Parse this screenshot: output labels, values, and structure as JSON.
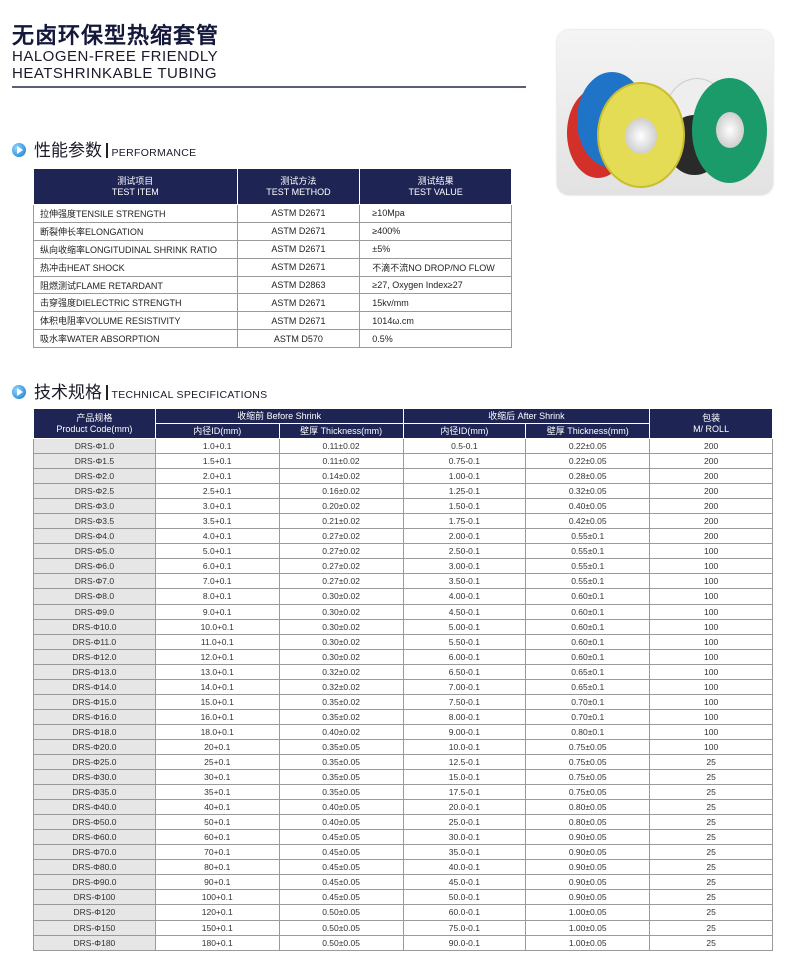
{
  "header": {
    "title_cn": "无卤环保型热缩套管",
    "title_en_line1": "HALOGEN-FREE FRIENDLY",
    "title_en_line2": "HEATSHRINKABLE TUBING"
  },
  "performance": {
    "title_cn": "性能参数",
    "title_en": "PERFORMANCE",
    "headers": [
      [
        "测试项目",
        "TEST ITEM"
      ],
      [
        "测试方法",
        "TEST METHOD"
      ],
      [
        "测试结果",
        "TEST VALUE"
      ]
    ],
    "rows": [
      [
        "拉伸强度TENSILE STRENGTH",
        "ASTM D2671",
        "≥10Mpa"
      ],
      [
        "断裂伸长率ELONGATION",
        "ASTM D2671",
        "≥400%"
      ],
      [
        "纵向收缩率LONGITUDINAL SHRINK RATIO",
        "ASTM D2671",
        "±5%"
      ],
      [
        "热冲击HEAT SHOCK",
        "ASTM D2671",
        "不滴不流NO DROP/NO FLOW"
      ],
      [
        "阻燃测试FLAME RETARDANT",
        "ASTM D2863",
        "≥27, Oxygen Index≥27"
      ],
      [
        "击穿强度DIELECTRIC STRENGTH",
        "ASTM D2671",
        "15kv/mm"
      ],
      [
        "体积电阻率VOLUME RESISTIVITY",
        "ASTM D2671",
        "1014ω.cm"
      ],
      [
        "吸水率WATER ABSORPTION",
        "ASTM D570",
        "0.5%"
      ]
    ]
  },
  "specs": {
    "title_cn": "技术规格",
    "title_en": "TECHNICAL SPECIFICATIONS",
    "header": {
      "code_cn": "产品规格",
      "code_en": "Product Code(mm)",
      "before": "收缩前 Before Shrink",
      "after": "收缩后 After Shrink",
      "pack_cn": "包装",
      "pack_en": "M/ ROLL",
      "id": "内径ID(mm)",
      "thickness": "壁厚 Thickness(mm)"
    },
    "rows": [
      [
        "DRS-Φ1.0",
        "1.0+0.1",
        "0.11±0.02",
        "0.5-0.1",
        "0.22±0.05",
        "200"
      ],
      [
        "DRS-Φ1.5",
        "1.5+0.1",
        "0.11±0.02",
        "0.75-0.1",
        "0.22±0.05",
        "200"
      ],
      [
        "DRS-Φ2.0",
        "2.0+0.1",
        "0.14±0.02",
        "1.00-0.1",
        "0.28±0.05",
        "200"
      ],
      [
        "DRS-Φ2.5",
        "2.5+0.1",
        "0.16±0.02",
        "1.25-0.1",
        "0.32±0.05",
        "200"
      ],
      [
        "DRS-Φ3.0",
        "3.0+0.1",
        "0.20±0.02",
        "1.50-0.1",
        "0.40±0.05",
        "200"
      ],
      [
        "DRS-Φ3.5",
        "3.5+0.1",
        "0.21±0.02",
        "1.75-0.1",
        "0.42±0.05",
        "200"
      ],
      [
        "DRS-Φ4.0",
        "4.0+0.1",
        "0.27±0.02",
        "2.00-0.1",
        "0.55±0.1",
        "200"
      ],
      [
        "DRS-Φ5.0",
        "5.0+0.1",
        "0.27±0.02",
        "2.50-0.1",
        "0.55±0.1",
        "100"
      ],
      [
        "DRS-Φ6.0",
        "6.0+0.1",
        "0.27±0.02",
        "3.00-0.1",
        "0.55±0.1",
        "100"
      ],
      [
        "DRS-Φ7.0",
        "7.0+0.1",
        "0.27±0.02",
        "3.50-0.1",
        "0.55±0.1",
        "100"
      ],
      [
        "DRS-Φ8.0",
        "8.0+0.1",
        "0.30±0.02",
        "4.00-0.1",
        "0.60±0.1",
        "100"
      ],
      [
        "DRS-Φ9.0",
        "9.0+0.1",
        "0.30±0.02",
        "4.50-0.1",
        "0.60±0.1",
        "100"
      ],
      [
        "DRS-Φ10.0",
        "10.0+0.1",
        "0.30±0.02",
        "5.00-0.1",
        "0.60±0.1",
        "100"
      ],
      [
        "DRS-Φ11.0",
        "11.0+0.1",
        "0.30±0.02",
        "5.50-0.1",
        "0.60±0.1",
        "100"
      ],
      [
        "DRS-Φ12.0",
        "12.0+0.1",
        "0.30±0.02",
        "6.00-0.1",
        "0.60±0.1",
        "100"
      ],
      [
        "DRS-Φ13.0",
        "13.0+0.1",
        "0.32±0.02",
        "6.50-0.1",
        "0.65±0.1",
        "100"
      ],
      [
        "DRS-Φ14.0",
        "14.0+0.1",
        "0.32±0.02",
        "7.00-0.1",
        "0.65±0.1",
        "100"
      ],
      [
        "DRS-Φ15.0",
        "15.0+0.1",
        "0.35±0.02",
        "7.50-0.1",
        "0.70±0.1",
        "100"
      ],
      [
        "DRS-Φ16.0",
        "16.0+0.1",
        "0.35±0.02",
        "8.00-0.1",
        "0.70±0.1",
        "100"
      ],
      [
        "DRS-Φ18.0",
        "18.0+0.1",
        "0.40±0.02",
        "9.00-0.1",
        "0.80±0.1",
        "100"
      ],
      [
        "DRS-Φ20.0",
        "20+0.1",
        "0.35±0.05",
        "10.0-0.1",
        "0.75±0.05",
        "100"
      ],
      [
        "DRS-Φ25.0",
        "25+0.1",
        "0.35±0.05",
        "12.5-0.1",
        "0.75±0.05",
        "25"
      ],
      [
        "DRS-Φ30.0",
        "30+0.1",
        "0.35±0.05",
        "15.0-0.1",
        "0.75±0.05",
        "25"
      ],
      [
        "DRS-Φ35.0",
        "35+0.1",
        "0.35±0.05",
        "17.5-0.1",
        "0.75±0.05",
        "25"
      ],
      [
        "DRS-Φ40.0",
        "40+0.1",
        "0.40±0.05",
        "20.0-0.1",
        "0.80±0.05",
        "25"
      ],
      [
        "DRS-Φ50.0",
        "50+0.1",
        "0.40±0.05",
        "25.0-0.1",
        "0.80±0.05",
        "25"
      ],
      [
        "DRS-Φ60.0",
        "60+0.1",
        "0.45±0.05",
        "30.0-0.1",
        "0.90±0.05",
        "25"
      ],
      [
        "DRS-Φ70.0",
        "70+0.1",
        "0.45±0.05",
        "35.0-0.1",
        "0.90±0.05",
        "25"
      ],
      [
        "DRS-Φ80.0",
        "80+0.1",
        "0.45±0.05",
        "40.0-0.1",
        "0.90±0.05",
        "25"
      ],
      [
        "DRS-Φ90.0",
        "90+0.1",
        "0.45±0.05",
        "45.0-0.1",
        "0.90±0.05",
        "25"
      ],
      [
        "DRS-Φ100",
        "100+0.1",
        "0.45±0.05",
        "50.0-0.1",
        "0.90±0.05",
        "25"
      ],
      [
        "DRS-Φ120",
        "120+0.1",
        "0.50±0.05",
        "60.0-0.1",
        "1.00±0.05",
        "25"
      ],
      [
        "DRS-Φ150",
        "150+0.1",
        "0.50±0.05",
        "75.0-0.1",
        "1.00±0.05",
        "25"
      ],
      [
        "DRS-Φ180",
        "180+0.1",
        "0.50±0.05",
        "90.0-0.1",
        "1.00±0.05",
        "25"
      ]
    ]
  },
  "colors": {
    "header_bg": "#1e2454",
    "code_cell_bg": "#e6e6e6",
    "roll_colors": [
      "#d8302a",
      "#1f74c8",
      "#e8e05a",
      "#1b9a6a",
      "#f0f0f0",
      "#2a2a2a"
    ]
  },
  "photo": {
    "icon": "heat-shrink-tubing-rolls-image"
  }
}
